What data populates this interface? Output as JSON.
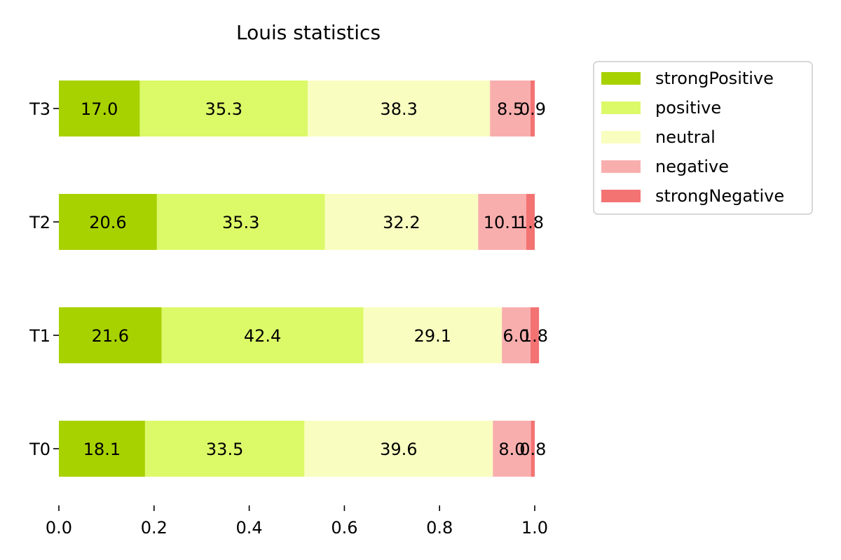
{
  "chart_data": {
    "type": "bar",
    "orientation": "horizontal",
    "stacked": true,
    "title": "Louis statistics",
    "categories": [
      "T0",
      "T1",
      "T2",
      "T3"
    ],
    "series": [
      {
        "name": "strongPositive",
        "color": "#a8d100",
        "values": [
          0.181,
          0.216,
          0.206,
          0.17
        ],
        "labels": [
          "18.1",
          "21.6",
          "20.6",
          "17.0"
        ]
      },
      {
        "name": "positive",
        "color": "#dcf968",
        "values": [
          0.335,
          0.424,
          0.353,
          0.353
        ],
        "labels": [
          "33.5",
          "42.4",
          "35.3",
          "35.3"
        ]
      },
      {
        "name": "neutral",
        "color": "#f9fec0",
        "values": [
          0.396,
          0.291,
          0.322,
          0.383
        ],
        "labels": [
          "39.6",
          "29.1",
          "32.2",
          "38.3"
        ]
      },
      {
        "name": "negative",
        "color": "#f9aeae",
        "values": [
          0.08,
          0.06,
          0.101,
          0.085
        ],
        "labels": [
          "8.0",
          "6.0",
          "10.1",
          "8.5"
        ]
      },
      {
        "name": "strongNegative",
        "color": "#f37373",
        "values": [
          0.008,
          0.018,
          0.018,
          0.009
        ],
        "labels": [
          "0.8",
          "1.8",
          "1.8",
          "0.9"
        ]
      }
    ],
    "x_ticks": [
      "0.0",
      "0.2",
      "0.4",
      "0.6",
      "0.8",
      "1.0"
    ],
    "xlim": [
      0,
      1
    ],
    "xlabel": "",
    "ylabel": "",
    "grid": false,
    "legend_position": "upper-right-outside"
  }
}
